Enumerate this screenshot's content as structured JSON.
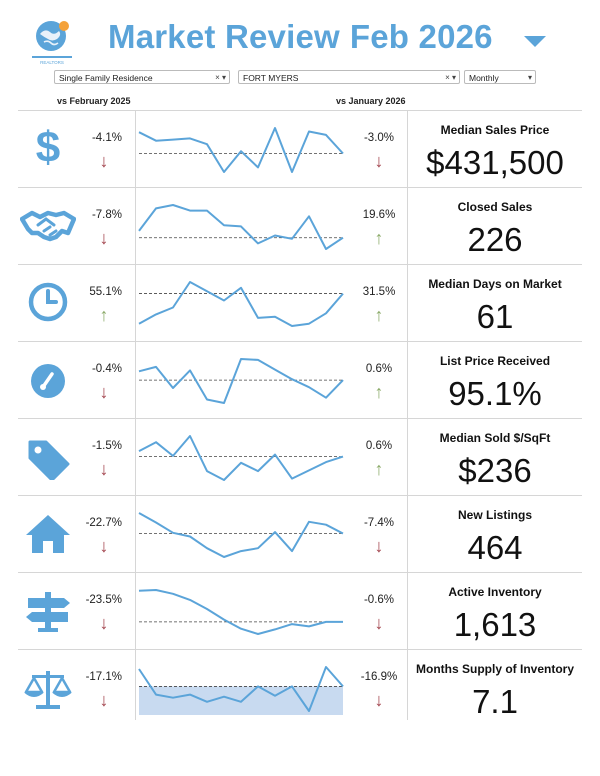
{
  "header": {
    "title": "Market Review",
    "month": "Feb 2026",
    "logo_text": "REALTORS"
  },
  "filters": {
    "property_type": "Single Family Residence",
    "area": "FORT MYERS",
    "period": "Monthly"
  },
  "columns": {
    "yoy": "vs February 2025",
    "mom": "vs January 2026"
  },
  "colors": {
    "accent": "#5ba4d9",
    "down": "#a2434c",
    "up": "#8cab6a"
  },
  "metrics": [
    {
      "label": "Median Sales Price",
      "value": "$431,500",
      "yoy": "-4.1%",
      "yoy_dir": "down",
      "mom": "-3.0%",
      "mom_dir": "down",
      "icon": "dollar-icon",
      "spark": [
        0.92,
        0.55,
        0.6,
        0.65,
        0.4,
        -0.8,
        0.1,
        -0.6,
        1.1,
        -0.8,
        0.95,
        0.8,
        0.0
      ],
      "ref": 0.0
    },
    {
      "label": "Closed Sales",
      "value": "226",
      "yoy": "-7.8%",
      "yoy_dir": "down",
      "mom": "19.6%",
      "mom_dir": "up",
      "icon": "handshake-icon",
      "spark": [
        0.3,
        1.3,
        1.45,
        1.2,
        1.2,
        0.55,
        0.5,
        -0.25,
        0.1,
        -0.05,
        0.95,
        -0.5,
        0.0
      ],
      "ref": 0.0
    },
    {
      "label": "Median Days on Market",
      "value": "61",
      "yoy": "55.1%",
      "yoy_dir": "up",
      "mom": "31.5%",
      "mom_dir": "up",
      "icon": "clock-icon",
      "spark": [
        -1.3,
        -0.9,
        -0.6,
        0.5,
        0.1,
        -0.3,
        0.25,
        -1.05,
        -1.0,
        -1.4,
        -1.3,
        -0.85,
        0.0
      ],
      "ref": 0.0
    },
    {
      "label": "List Price Received",
      "value": "95.1%",
      "yoy": "-0.4%",
      "yoy_dir": "down",
      "mom": "0.6%",
      "mom_dir": "up",
      "icon": "gauge-icon",
      "spark": [
        0.5,
        0.75,
        -0.45,
        0.55,
        -1.1,
        -1.3,
        1.2,
        1.15,
        0.6,
        0.05,
        -0.4,
        -1.0,
        0.0
      ],
      "ref": 0.0
    },
    {
      "label": "Median Sold $/SqFt",
      "value": "$236",
      "yoy": "-1.5%",
      "yoy_dir": "down",
      "mom": "0.6%",
      "mom_dir": "up",
      "icon": "tag-icon",
      "spark": [
        0.4,
        1.05,
        0.05,
        1.5,
        -1.05,
        -1.7,
        -0.45,
        -1.05,
        0.15,
        -1.6,
        -1.0,
        -0.4,
        0.0
      ],
      "ref": 0.0
    },
    {
      "label": "New Listings",
      "value": "464",
      "yoy": "-22.7%",
      "yoy_dir": "down",
      "mom": "-7.4%",
      "mom_dir": "down",
      "icon": "house-icon",
      "spark": [
        1.4,
        0.75,
        0.05,
        -0.2,
        -1.0,
        -1.6,
        -1.2,
        -1.0,
        0.1,
        -1.2,
        0.8,
        0.6,
        0.0
      ],
      "ref": 0.0
    },
    {
      "label": "Active Inventory",
      "value": "1,613",
      "yoy": "-23.5%",
      "yoy_dir": "down",
      "mom": "-0.6%",
      "mom_dir": "down",
      "icon": "signpost-icon",
      "spark": [
        2.05,
        2.1,
        1.85,
        1.45,
        0.85,
        0.15,
        -0.45,
        -0.8,
        -0.5,
        -0.15,
        -0.3,
        0.0,
        0.0
      ],
      "ref": 0.0
    },
    {
      "label": "Months Supply of Inventory",
      "value": "7.1",
      "yoy": "-17.1%",
      "yoy_dir": "down",
      "mom": "-16.9%",
      "mom_dir": "down",
      "icon": "scale-icon",
      "spark": [
        0.85,
        -0.4,
        -0.55,
        -0.4,
        -0.75,
        -0.5,
        -0.75,
        0.0,
        -0.45,
        0.0,
        -1.2,
        0.95,
        0.0
      ],
      "ref": 0.0
    }
  ]
}
